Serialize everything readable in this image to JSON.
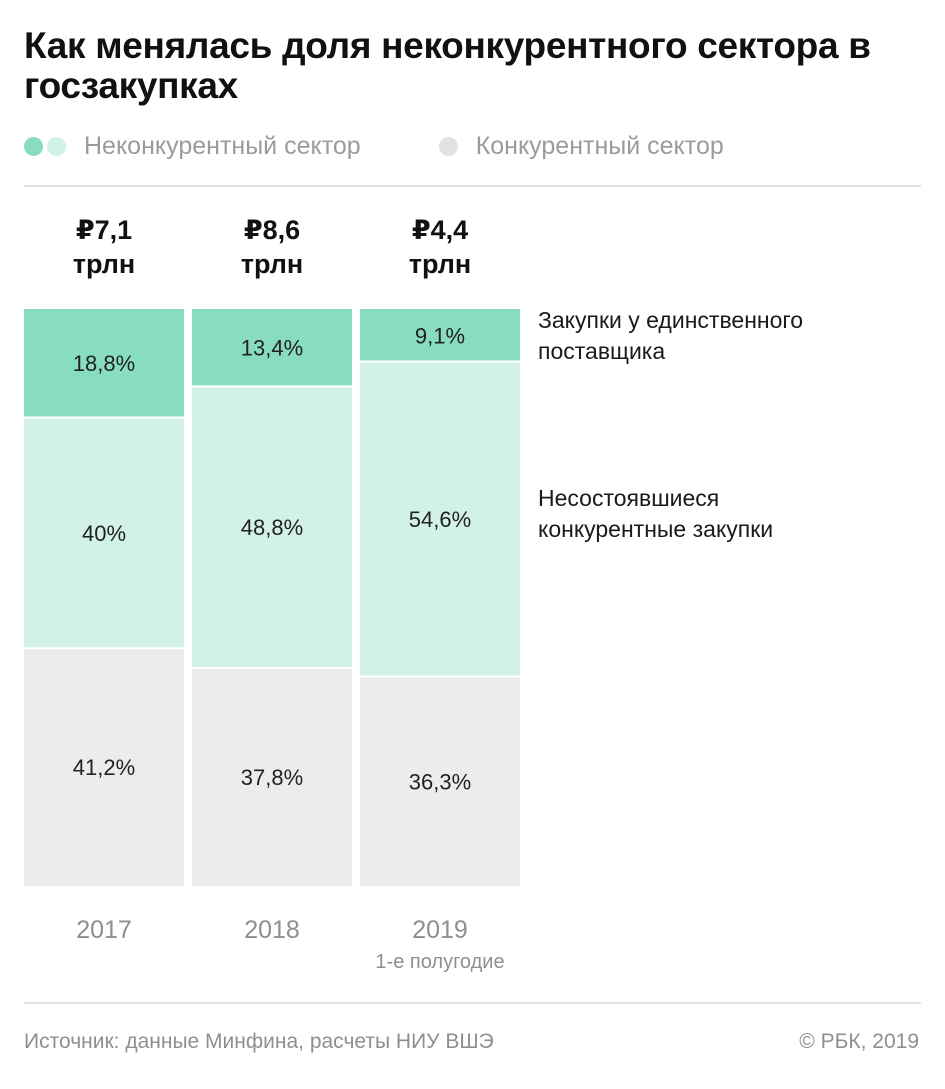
{
  "title": "Как менялась доля неконкурентного сектора в госзакупках",
  "legend": [
    {
      "label": "Неконкурентный сектор",
      "colors": [
        "#88dcc1",
        "#d2f1e7"
      ],
      "icon": "double-dot-icon"
    },
    {
      "label": "Конкурентный сектор",
      "colors": [
        "#e2e2e2"
      ],
      "icon": "dot-icon"
    }
  ],
  "colors": {
    "single_supplier": "#88dcc1",
    "failed_competitive": "#d2f1e7",
    "competitive": "#ececec"
  },
  "source": "Источник: данные Минфина, расчеты НИУ ВШЭ",
  "copyright": "© РБК, 2019",
  "chart_data": {
    "type": "bar",
    "stacked": true,
    "orientation": "vertical",
    "categories": [
      "2017",
      "2018",
      "2019"
    ],
    "category_notes": [
      "",
      "",
      "1-е полугодие"
    ],
    "totals": [
      "₽7,1\nтрлн",
      "₽8,6\nтрлн",
      "₽4,4\nтрлн"
    ],
    "series": [
      {
        "name": "Закупки у единственного поставщика",
        "values": [
          18.8,
          13.4,
          9.1
        ],
        "labels": [
          "18,8%",
          "13,4%",
          "9,1%"
        ]
      },
      {
        "name": "Несостоявшиеся конкурентные закупки",
        "values": [
          40,
          48.8,
          54.6
        ],
        "labels": [
          "40%",
          "48,8%",
          "54,6%"
        ]
      },
      {
        "name": "",
        "values": [
          41.2,
          37.8,
          36.3
        ],
        "labels": [
          "41,2%",
          "37,8%",
          "36,3%"
        ]
      }
    ],
    "annotations": [
      "Закупки у единственного\nпоставщика",
      "Несостоявшиеся\nконкурентные закупки"
    ],
    "ylim": [
      0,
      100
    ],
    "grid": false,
    "legend_position": "top-left"
  }
}
